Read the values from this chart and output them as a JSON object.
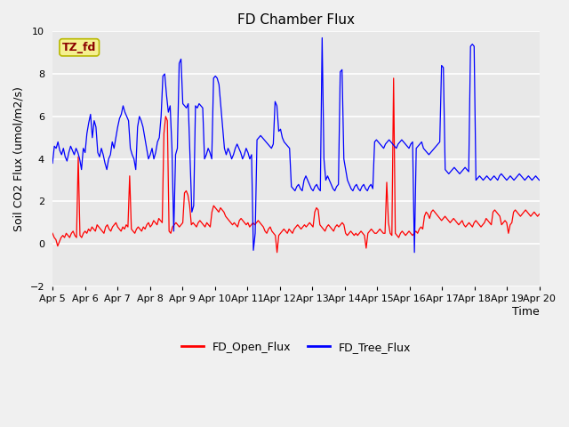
{
  "title": "FD Chamber Flux",
  "xlabel": "Time",
  "ylabel": "Soil CO2 Flux (umol/m2/s)",
  "ylim": [
    -2,
    10
  ],
  "yticks": [
    -2,
    0,
    2,
    4,
    6,
    8,
    10
  ],
  "background_color": "#f0f0f0",
  "plot_bg_color": "#e8e8e8",
  "grid_color": "white",
  "annotation_text": "TZ_fd",
  "annotation_bg": "#f5f090",
  "annotation_fg": "#8b0000",
  "legend_labels": [
    "FD_Open_Flux",
    "FD_Tree_Flux"
  ],
  "line_colors": [
    "red",
    "blue"
  ],
  "line_width": 0.9,
  "title_fontsize": 11,
  "label_fontsize": 9,
  "tick_fontsize": 8,
  "red_flux": [
    0.5,
    0.3,
    0.2,
    -0.1,
    0.1,
    0.3,
    0.4,
    0.3,
    0.5,
    0.4,
    0.3,
    0.5,
    0.6,
    0.4,
    0.3,
    4.1,
    0.4,
    0.3,
    0.5,
    0.6,
    0.5,
    0.7,
    0.6,
    0.8,
    0.7,
    0.6,
    0.9,
    0.8,
    0.7,
    0.6,
    0.5,
    0.8,
    0.9,
    0.7,
    0.6,
    0.8,
    0.9,
    1.0,
    0.8,
    0.7,
    0.6,
    0.8,
    0.7,
    0.9,
    0.8,
    3.2,
    0.7,
    0.6,
    0.5,
    0.7,
    0.8,
    0.7,
    0.6,
    0.8,
    0.7,
    0.9,
    1.0,
    0.8,
    0.9,
    1.1,
    1.0,
    0.9,
    1.2,
    1.1,
    1.0,
    5.2,
    6.0,
    5.8,
    0.6,
    0.5,
    0.8,
    0.9,
    1.0,
    0.9,
    0.8,
    0.9,
    1.0,
    2.4,
    2.5,
    2.3,
    1.8,
    0.9,
    1.0,
    0.9,
    0.8,
    1.0,
    1.1,
    1.0,
    0.9,
    0.8,
    1.0,
    0.9,
    0.8,
    1.5,
    1.8,
    1.7,
    1.6,
    1.5,
    1.7,
    1.6,
    1.5,
    1.3,
    1.2,
    1.1,
    1.0,
    0.9,
    1.0,
    0.9,
    0.8,
    1.1,
    1.2,
    1.1,
    1.0,
    0.9,
    1.0,
    0.8,
    0.9,
    1.0,
    0.9,
    1.0,
    1.1,
    1.0,
    0.9,
    0.8,
    0.6,
    0.5,
    0.7,
    0.8,
    0.6,
    0.5,
    0.4,
    -0.4,
    0.4,
    0.5,
    0.6,
    0.7,
    0.6,
    0.5,
    0.7,
    0.6,
    0.5,
    0.7,
    0.8,
    0.9,
    0.8,
    0.7,
    0.8,
    0.9,
    0.8,
    0.9,
    1.0,
    0.9,
    0.8,
    1.5,
    1.7,
    1.6,
    0.9,
    0.8,
    0.7,
    0.6,
    0.8,
    0.9,
    0.8,
    0.7,
    0.6,
    0.8,
    0.9,
    0.8,
    0.9,
    1.0,
    0.9,
    0.5,
    0.4,
    0.5,
    0.6,
    0.5,
    0.4,
    0.5,
    0.4,
    0.5,
    0.6,
    0.5,
    0.4,
    -0.2,
    0.5,
    0.6,
    0.7,
    0.6,
    0.5,
    0.5,
    0.6,
    0.7,
    0.6,
    0.5,
    0.5,
    2.9,
    1.0,
    0.5,
    0.4,
    7.8,
    0.5,
    0.4,
    0.3,
    0.5,
    0.6,
    0.5,
    0.4,
    0.5,
    0.6,
    0.5,
    0.4,
    0.5,
    0.6,
    0.5,
    0.7,
    0.8,
    0.7,
    1.3,
    1.5,
    1.4,
    1.2,
    1.5,
    1.6,
    1.5,
    1.4,
    1.3,
    1.2,
    1.1,
    1.2,
    1.3,
    1.2,
    1.1,
    1.0,
    1.1,
    1.2,
    1.1,
    1.0,
    0.9,
    1.0,
    1.1,
    0.9,
    0.8,
    0.9,
    1.0,
    0.9,
    0.8,
    1.0,
    1.1,
    1.0,
    0.9,
    0.8,
    0.9,
    1.0,
    1.2,
    1.1,
    1.0,
    0.9,
    1.5,
    1.6,
    1.5,
    1.4,
    1.3,
    0.9,
    1.0,
    1.1,
    1.0,
    0.5,
    0.9,
    1.0,
    1.5,
    1.6,
    1.5,
    1.4,
    1.3,
    1.4,
    1.5,
    1.6,
    1.5,
    1.4,
    1.3,
    1.4,
    1.5,
    1.4,
    1.3,
    1.4
  ],
  "blue_flux": [
    3.8,
    4.6,
    4.5,
    4.8,
    4.4,
    4.2,
    4.5,
    4.1,
    3.9,
    4.3,
    4.6,
    4.4,
    4.2,
    4.5,
    4.3,
    4.0,
    3.5,
    4.5,
    4.3,
    5.2,
    5.7,
    6.1,
    5.0,
    5.8,
    5.5,
    4.3,
    4.1,
    4.5,
    4.2,
    3.8,
    3.5,
    4.0,
    4.2,
    4.8,
    4.5,
    5.0,
    5.5,
    5.9,
    6.1,
    6.5,
    6.2,
    6.0,
    5.8,
    4.5,
    4.2,
    4.0,
    3.5,
    5.5,
    6.0,
    5.8,
    5.5,
    5.0,
    4.5,
    4.0,
    4.2,
    4.5,
    4.0,
    4.3,
    4.8,
    5.0,
    6.0,
    7.9,
    8.0,
    7.0,
    6.2,
    6.5,
    4.5,
    0.6,
    4.2,
    4.5,
    8.5,
    8.7,
    6.6,
    6.5,
    6.4,
    6.6,
    4.0,
    1.5,
    1.8,
    6.5,
    6.4,
    6.6,
    6.5,
    6.4,
    4.0,
    4.2,
    4.5,
    4.3,
    4.0,
    7.8,
    7.9,
    7.8,
    7.5,
    6.5,
    5.5,
    4.5,
    4.2,
    4.5,
    4.3,
    4.0,
    4.2,
    4.5,
    4.7,
    4.5,
    4.3,
    4.0,
    4.2,
    4.5,
    4.3,
    4.0,
    4.2,
    -0.3,
    0.5,
    4.9,
    5.0,
    5.1,
    5.0,
    4.9,
    4.8,
    4.7,
    4.6,
    4.5,
    4.7,
    6.7,
    6.5,
    5.3,
    5.4,
    5.0,
    4.8,
    4.7,
    4.6,
    4.5,
    2.7,
    2.6,
    2.5,
    2.7,
    2.8,
    2.6,
    2.5,
    3.0,
    3.2,
    3.0,
    2.8,
    2.6,
    2.5,
    2.7,
    2.8,
    2.6,
    2.5,
    9.7,
    4.0,
    3.0,
    3.2,
    3.0,
    2.8,
    2.6,
    2.5,
    2.7,
    2.8,
    8.1,
    8.2,
    4.0,
    3.5,
    3.0,
    2.8,
    2.6,
    2.5,
    2.7,
    2.8,
    2.6,
    2.5,
    2.7,
    2.8,
    2.6,
    2.5,
    2.7,
    2.8,
    2.6,
    4.8,
    4.9,
    4.8,
    4.7,
    4.6,
    4.5,
    4.7,
    4.8,
    4.9,
    4.8,
    4.7,
    4.6,
    4.5,
    4.7,
    4.8,
    4.9,
    4.8,
    4.7,
    4.6,
    4.5,
    4.7,
    4.8,
    -0.4,
    4.5,
    4.6,
    4.7,
    4.8,
    4.5,
    4.4,
    4.3,
    4.2,
    4.3,
    4.4,
    4.5,
    4.6,
    4.7,
    4.8,
    8.4,
    8.3,
    3.5,
    3.4,
    3.3,
    3.4,
    3.5,
    3.6,
    3.5,
    3.4,
    3.3,
    3.4,
    3.5,
    3.6,
    3.5,
    3.4,
    9.3,
    9.4,
    9.3,
    3.0,
    3.1,
    3.2,
    3.1,
    3.0,
    3.1,
    3.2,
    3.1,
    3.0,
    3.1,
    3.2,
    3.1,
    3.0,
    3.2,
    3.3,
    3.2,
    3.1,
    3.0,
    3.1,
    3.2,
    3.1,
    3.0,
    3.1,
    3.2,
    3.3,
    3.2,
    3.1,
    3.0,
    3.1,
    3.2,
    3.1,
    3.0,
    3.1,
    3.2,
    3.1,
    3.0
  ]
}
